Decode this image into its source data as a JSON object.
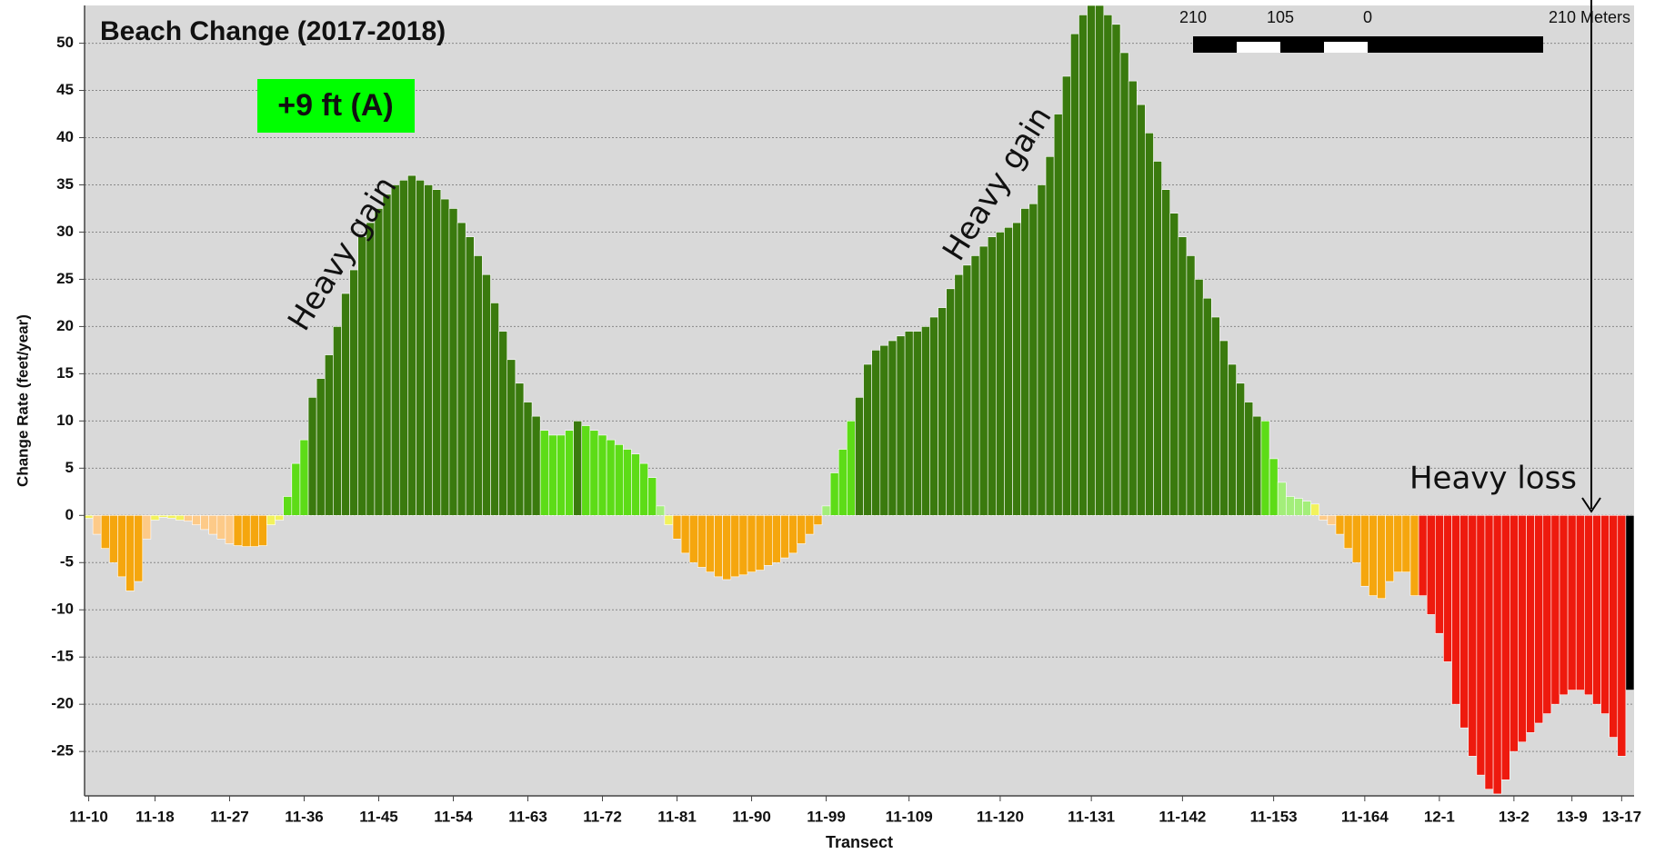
{
  "chart_data": {
    "type": "bar",
    "title": "Beach Change (2017-2018)",
    "y_label": "Change Rate (feet/year)",
    "x_label": "Transect",
    "grade_label": "+9  ft (A)",
    "annotations": [
      "Heavy gain",
      "Heavy gain",
      "Heavy loss"
    ],
    "scale_bar": [
      "210",
      "105",
      "0",
      "210 Meters"
    ],
    "categories": [
      "11-10",
      null,
      null,
      null,
      null,
      null,
      null,
      null,
      "11-18",
      null,
      null,
      null,
      null,
      null,
      null,
      null,
      null,
      "11-27",
      null,
      null,
      null,
      null,
      null,
      null,
      null,
      null,
      "11-36",
      null,
      null,
      null,
      null,
      null,
      null,
      null,
      null,
      "11-45",
      null,
      null,
      null,
      null,
      null,
      null,
      null,
      null,
      "11-54",
      null,
      null,
      null,
      null,
      null,
      null,
      null,
      null,
      "11-63",
      null,
      null,
      null,
      null,
      null,
      null,
      null,
      null,
      "11-72",
      null,
      null,
      null,
      null,
      null,
      null,
      null,
      null,
      "11-81",
      null,
      null,
      null,
      null,
      null,
      null,
      null,
      null,
      "11-90",
      null,
      null,
      null,
      null,
      null,
      null,
      null,
      null,
      "11-99",
      null,
      null,
      null,
      null,
      null,
      null,
      null,
      null,
      null,
      "11-109",
      null,
      null,
      null,
      null,
      null,
      null,
      null,
      null,
      null,
      null,
      "11-120",
      null,
      null,
      null,
      null,
      null,
      null,
      null,
      null,
      null,
      null,
      "11-131",
      null,
      null,
      null,
      null,
      null,
      null,
      null,
      null,
      null,
      null,
      "11-142",
      null,
      null,
      null,
      null,
      null,
      null,
      null,
      null,
      null,
      null,
      "11-153",
      null,
      null,
      null,
      null,
      null,
      null,
      null,
      null,
      null,
      null,
      "11-164",
      null,
      null,
      null,
      null,
      null,
      null,
      null,
      null,
      "12-1",
      null,
      null,
      null,
      null,
      null,
      null,
      null,
      null,
      "13-2",
      null,
      null,
      null,
      null,
      null,
      null,
      "13-9",
      null,
      null,
      null,
      null,
      null,
      "13-17",
      null
    ],
    "values": [
      -0.3,
      -2,
      -3.5,
      -5,
      -6.5,
      -8,
      -7,
      -2.5,
      -0.5,
      -0.2,
      -0.3,
      -0.5,
      -0.6,
      -1,
      -1.5,
      -2,
      -2.5,
      -3,
      -3.2,
      -3.3,
      -3.3,
      -3.2,
      -1,
      -0.5,
      2,
      5.5,
      8,
      12.5,
      14.5,
      17,
      20,
      23.5,
      26,
      29.5,
      31,
      32.5,
      34,
      35,
      35.5,
      36,
      35.5,
      35,
      34.5,
      33.5,
      32.5,
      31,
      29.5,
      27.5,
      25.5,
      22.5,
      19.5,
      16.5,
      14,
      12,
      10.5,
      9,
      8.5,
      8.5,
      9,
      10,
      9.5,
      9,
      8.5,
      8,
      7.5,
      7,
      6.5,
      5.5,
      4,
      1,
      -1,
      -2.5,
      -4,
      -5,
      -5.5,
      -6,
      -6.5,
      -6.8,
      -6.5,
      -6.3,
      -6,
      -5.8,
      -5.3,
      -5,
      -4.5,
      -4,
      -3,
      -2,
      -1,
      1,
      4.5,
      7,
      10,
      12.5,
      16,
      17.5,
      18,
      18.5,
      19,
      19.5,
      19.5,
      20,
      21,
      22,
      24,
      25.5,
      26.5,
      27.5,
      28.5,
      29.5,
      30,
      30.5,
      31,
      32.5,
      33,
      35,
      38,
      42.5,
      46.5,
      51,
      53,
      54,
      54,
      53,
      52,
      49,
      46,
      43.5,
      40.5,
      37.5,
      34.5,
      32,
      29.5,
      27.5,
      25,
      23,
      21,
      18.5,
      16,
      14,
      12,
      10.5,
      10,
      6,
      3.5,
      2,
      1.8,
      1.5,
      1.2,
      -0.5,
      -1,
      -2,
      -3.5,
      -5,
      -7.5,
      -8.5,
      -8.8,
      -7,
      -6,
      -6,
      -8.5,
      -8.5,
      -10.5,
      -12.5,
      -15.5,
      -20,
      -22.5,
      -25.5,
      -27.5,
      -29,
      -29.5,
      -28,
      -25,
      -24,
      -23,
      -22,
      -21,
      -20,
      -19,
      -18.5,
      -18.5,
      -19,
      -20,
      -21,
      -23.5,
      -25.5,
      -18.5
    ],
    "colors": [
      "#f2f25c",
      "#fdca88",
      "#f5a60e",
      "#f5a60e",
      "#f5a60e",
      "#f5a60e",
      "#f5a60e",
      "#fdca88",
      "#f2f25c",
      "#f2f25c",
      "#f2f25c",
      "#f2f25c",
      "#fdca88",
      "#fdca88",
      "#fdca88",
      "#fdca88",
      "#fdca88",
      "#fdca88",
      "#f5a60e",
      "#f5a60e",
      "#f5a60e",
      "#f5a60e",
      "#f2f25c",
      "#f2f25c",
      "#5ddc17",
      "#5ddc17",
      "#5ddc17",
      "#3a7a0e",
      "#3a7a0e",
      "#3a7a0e",
      "#3a7a0e",
      "#3a7a0e",
      "#3a7a0e",
      "#3a7a0e",
      "#3a7a0e",
      "#3a7a0e",
      "#3a7a0e",
      "#3a7a0e",
      "#3a7a0e",
      "#3a7a0e",
      "#3a7a0e",
      "#3a7a0e",
      "#3a7a0e",
      "#3a7a0e",
      "#3a7a0e",
      "#3a7a0e",
      "#3a7a0e",
      "#3a7a0e",
      "#3a7a0e",
      "#3a7a0e",
      "#3a7a0e",
      "#3a7a0e",
      "#3a7a0e",
      "#3a7a0e",
      "#3a7a0e",
      "#5ddc17",
      "#5ddc17",
      "#5ddc17",
      "#5ddc17",
      "#3a7a0e",
      "#5ddc17",
      "#5ddc17",
      "#5ddc17",
      "#5ddc17",
      "#5ddc17",
      "#5ddc17",
      "#5ddc17",
      "#5ddc17",
      "#5ddc17",
      "#a3ee7a",
      "#f2f25c",
      "#f5a60e",
      "#f5a60e",
      "#f5a60e",
      "#f5a60e",
      "#f5a60e",
      "#f5a60e",
      "#f5a60e",
      "#f5a60e",
      "#f5a60e",
      "#f5a60e",
      "#f5a60e",
      "#f5a60e",
      "#f5a60e",
      "#f5a60e",
      "#f5a60e",
      "#f5a60e",
      "#f5a60e",
      "#f5a60e",
      "#a3ee7a",
      "#5ddc17",
      "#5ddc17",
      "#5ddc17",
      "#3a7a0e",
      "#3a7a0e",
      "#3a7a0e",
      "#3a7a0e",
      "#3a7a0e",
      "#3a7a0e",
      "#3a7a0e",
      "#3a7a0e",
      "#3a7a0e",
      "#3a7a0e",
      "#3a7a0e",
      "#3a7a0e",
      "#3a7a0e",
      "#3a7a0e",
      "#3a7a0e",
      "#3a7a0e",
      "#3a7a0e",
      "#3a7a0e",
      "#3a7a0e",
      "#3a7a0e",
      "#3a7a0e",
      "#3a7a0e",
      "#3a7a0e",
      "#3a7a0e",
      "#3a7a0e",
      "#3a7a0e",
      "#3a7a0e",
      "#3a7a0e",
      "#3a7a0e",
      "#3a7a0e",
      "#3a7a0e",
      "#3a7a0e",
      "#3a7a0e",
      "#3a7a0e",
      "#3a7a0e",
      "#3a7a0e",
      "#3a7a0e",
      "#3a7a0e",
      "#3a7a0e",
      "#3a7a0e",
      "#3a7a0e",
      "#3a7a0e",
      "#3a7a0e",
      "#3a7a0e",
      "#3a7a0e",
      "#3a7a0e",
      "#3a7a0e",
      "#3a7a0e",
      "#3a7a0e",
      "#5ddc17",
      "#5ddc17",
      "#a3ee7a",
      "#a3ee7a",
      "#a3ee7a",
      "#a3ee7a",
      "#f2f25c",
      "#fdca88",
      "#fdca88",
      "#f5a60e",
      "#f5a60e",
      "#f5a60e",
      "#f5a60e",
      "#f5a60e",
      "#f5a60e",
      "#f5a60e",
      "#f5a60e",
      "#f5a60e",
      "#f5a60e",
      "#ee1a0e",
      "#ee1a0e",
      "#ee1a0e",
      "#ee1a0e",
      "#ee1a0e",
      "#ee1a0e",
      "#ee1a0e",
      "#ee1a0e",
      "#ee1a0e",
      "#ee1a0e",
      "#ee1a0e",
      "#ee1a0e",
      "#ee1a0e",
      "#ee1a0e",
      "#ee1a0e",
      "#ee1a0e",
      "#ee1a0e",
      "#ee1a0e",
      "#ee1a0e",
      "#ee1a0e",
      "#ee1a0e",
      "#ee1a0e",
      "#ee1a0e",
      "#ee1a0e",
      "#ee1a0e"
    ],
    "ylim": [
      -29.7,
      54
    ],
    "yticks": [
      -25,
      -20,
      -15,
      -10,
      -5,
      0,
      5,
      10,
      15,
      20,
      25,
      30,
      35,
      40,
      45,
      50
    ],
    "grid": true
  }
}
